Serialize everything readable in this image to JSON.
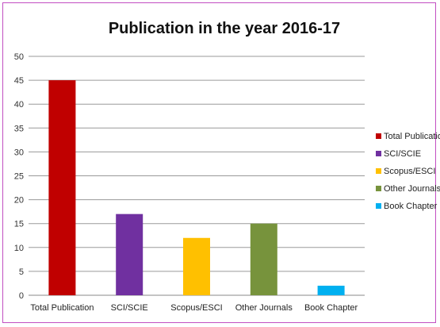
{
  "chart_data": {
    "type": "bar",
    "title": "Publication in the year 2016-17",
    "categories": [
      "Total Publication",
      "SCI/SCIE",
      "Scopus/ESCI",
      "Other Journals",
      "Book Chapter"
    ],
    "values": [
      45,
      17,
      12,
      15,
      2
    ],
    "colors": [
      "#c00000",
      "#7030a0",
      "#ffc000",
      "#77933c",
      "#00b0f0"
    ],
    "ylim": [
      0,
      50
    ],
    "yticks": [
      0,
      5,
      10,
      15,
      20,
      25,
      30,
      35,
      40,
      45,
      50
    ],
    "grid": true,
    "legend": {
      "placement": "right",
      "entries": [
        "Total Publication",
        "SCI/SCIE",
        "Scopus/ESCI",
        "Other Journals",
        "Book Chapter"
      ]
    }
  }
}
